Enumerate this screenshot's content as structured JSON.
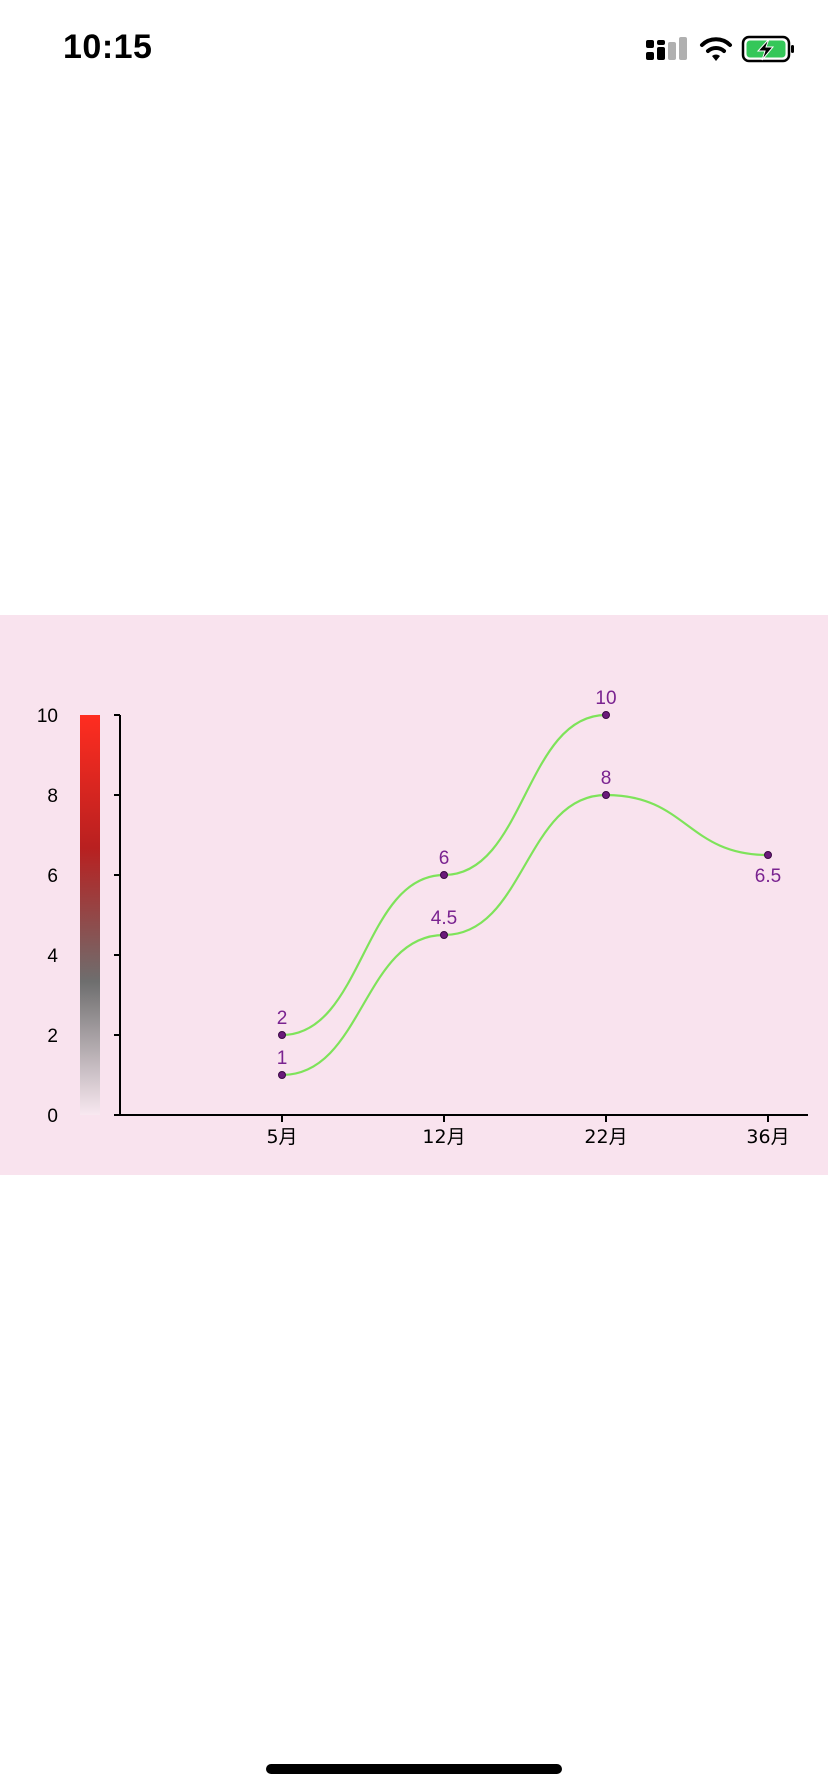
{
  "status_bar": {
    "time": "10:15",
    "icons": [
      "cellular-signal-icon",
      "wifi-icon",
      "battery-charging-icon"
    ],
    "battery_color": "#34c759"
  },
  "chart_data": {
    "type": "line",
    "categories": [
      "5月",
      "12月",
      "22月",
      "36月"
    ],
    "series": [
      {
        "x": [
          "5月",
          "12月",
          "22月"
        ],
        "values": [
          2,
          6,
          10
        ]
      },
      {
        "x": [
          "5月",
          "12月",
          "22月",
          "36月"
        ],
        "values": [
          1,
          4.5,
          8,
          6.5
        ]
      }
    ],
    "y_ticks": [
      "0",
      "2",
      "4",
      "6",
      "8",
      "10"
    ],
    "ylim": [
      0,
      10
    ],
    "line_color": "#7ee35a",
    "point_color": "#6a1a7a",
    "label_color": "#7a2390",
    "background": "#f9e3ee",
    "color_scale_colors": [
      "#f8e8f0",
      "#6e6e6e",
      "#b82020",
      "#ff2d20"
    ],
    "grid": false,
    "smooth": true
  }
}
